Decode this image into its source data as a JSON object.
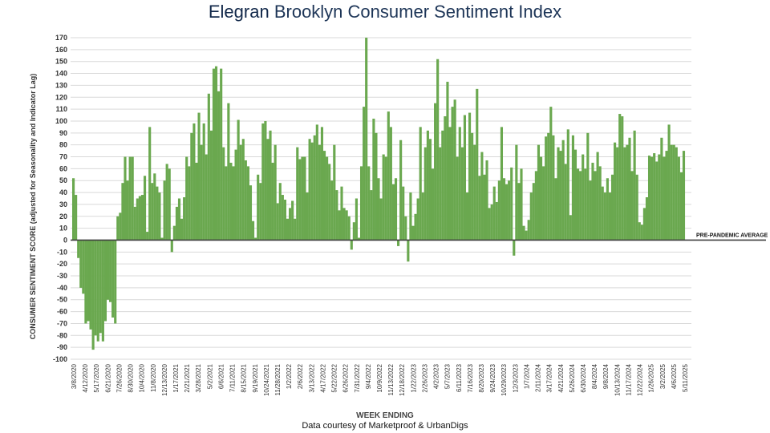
{
  "title": {
    "brand": "Elegran",
    "rest": "Brooklyn Consumer Sentiment Index"
  },
  "credit": "Data courtesy of Marketproof & UrbanDigs",
  "colors": {
    "bar": "#6aa84f",
    "baseline": "#404040",
    "grid": "#d9d9d9",
    "title": "#1d3557"
  },
  "chart_data": {
    "type": "bar",
    "title": "Elegran Brooklyn Consumer Sentiment Index",
    "xlabel": "WEEK ENDING",
    "ylabel": "CONSUMER SENTIMENT SCORE (adjusted for Seasonality and Indicator Lag)",
    "ylim": [
      -100,
      170
    ],
    "yticks": [
      170,
      160,
      150,
      140,
      130,
      120,
      110,
      100,
      90,
      80,
      70,
      60,
      50,
      40,
      30,
      20,
      10,
      0,
      -10,
      -20,
      -30,
      -40,
      -50,
      -60,
      -70,
      -80,
      -90,
      -100
    ],
    "grid": true,
    "reference_line": {
      "label": "PRE-PANDEMIC AVERAGE",
      "value": 0
    },
    "x_tick_labels": [
      "3/8/2020",
      "4/12/2020",
      "5/17/2020",
      "6/21/2020",
      "7/26/2020",
      "8/30/2020",
      "10/4/2020",
      "11/8/2020",
      "12/13/2020",
      "1/17/2021",
      "2/21/2021",
      "3/28/2021",
      "5/2/2021",
      "6/6/2021",
      "7/11/2021",
      "8/15/2021",
      "9/19/2021",
      "10/24/2021",
      "11/28/2021",
      "1/2/2022",
      "2/6/2022",
      "3/13/2022",
      "4/17/2022",
      "5/22/2022",
      "6/26/2022",
      "7/31/2022",
      "9/4/2022",
      "10/9/2022",
      "11/13/2022",
      "12/18/2022",
      "1/22/2023",
      "2/26/2023",
      "4/2/2023",
      "5/7/2023",
      "6/11/2023",
      "7/16/2023",
      "8/20/2023",
      "9/24/2023",
      "10/29/2023",
      "12/3/2023",
      "1/7/2024",
      "2/11/2024",
      "3/17/2024",
      "4/21/2024",
      "5/26/2024",
      "6/30/2024",
      "8/4/2024",
      "9/8/2024",
      "10/13/2024",
      "11/17/2024",
      "12/22/2024",
      "1/26/2025",
      "3/2/2025",
      "4/6/2025",
      "5/11/2025"
    ],
    "series": [
      {
        "values": [
          52,
          38,
          -15,
          -40,
          -45,
          -70,
          -68,
          -75,
          -92,
          -80,
          -85,
          -78,
          -85,
          -68,
          -50,
          -52,
          -65,
          -70,
          20,
          23,
          48,
          70,
          50,
          70,
          70,
          28,
          35,
          37,
          38,
          54,
          7,
          95,
          48,
          56,
          45,
          40,
          2,
          50,
          64,
          60,
          -10,
          12,
          28,
          35,
          18,
          36,
          70,
          62,
          90,
          98,
          65,
          107,
          80,
          98,
          72,
          123,
          92,
          144,
          146,
          125,
          144,
          78,
          62,
          115,
          65,
          62,
          76,
          101,
          80,
          85,
          67,
          62,
          46,
          16,
          2,
          55,
          48,
          98,
          100,
          85,
          92,
          65,
          80,
          31,
          48,
          38,
          34,
          18,
          27,
          33,
          18,
          78,
          68,
          70,
          70,
          40,
          85,
          82,
          88,
          97,
          80,
          95,
          75,
          70,
          64,
          50,
          80,
          42,
          25,
          45,
          27,
          25,
          20,
          -8,
          15,
          35,
          2,
          62,
          112,
          170,
          62,
          42,
          102,
          90,
          52,
          35,
          72,
          70,
          108,
          95,
          47,
          52,
          -5,
          84,
          45,
          20,
          -18,
          40,
          12,
          22,
          35,
          95,
          40,
          78,
          92,
          85,
          60,
          115,
          152,
          78,
          92,
          104,
          133,
          95,
          112,
          118,
          70,
          95,
          78,
          105,
          40,
          107,
          90,
          80,
          127,
          54,
          74,
          55,
          67,
          27,
          30,
          45,
          32,
          50,
          95,
          52,
          47,
          50,
          61,
          -13,
          80,
          48,
          60,
          12,
          8,
          17,
          40,
          48,
          58,
          80,
          70,
          62,
          87,
          90,
          112,
          88,
          52,
          78,
          75,
          84,
          64,
          93,
          21,
          88,
          76,
          60,
          58,
          72,
          60,
          90,
          50,
          65,
          58,
          74,
          62,
          45,
          40,
          52,
          40,
          55,
          82,
          78,
          106,
          104,
          78,
          80,
          86,
          58,
          92,
          55,
          15,
          13,
          27,
          36,
          71,
          70,
          73,
          66,
          72,
          86,
          70,
          75,
          97,
          80,
          80,
          78,
          70,
          57,
          75
        ]
      }
    ]
  }
}
